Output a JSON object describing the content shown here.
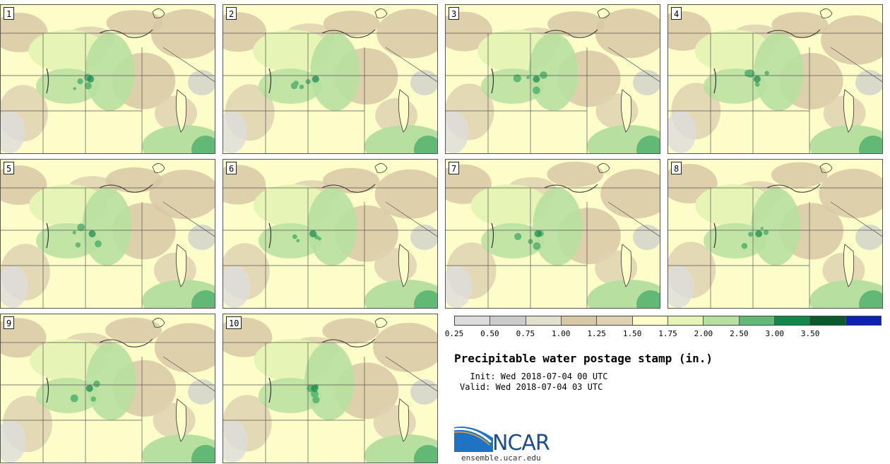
{
  "panels": [
    {
      "label": "1"
    },
    {
      "label": "2"
    },
    {
      "label": "3"
    },
    {
      "label": "4"
    },
    {
      "label": "5"
    },
    {
      "label": "6"
    },
    {
      "label": "7"
    },
    {
      "label": "8"
    },
    {
      "label": "9"
    },
    {
      "label": "10"
    }
  ],
  "colorbar": {
    "colors": [
      "#dcdcdc",
      "#cbcbcb",
      "#e3dfcf",
      "#d8c8a6",
      "#dfd2b2",
      "#fdfdc9",
      "#e6f4b5",
      "#b7e0a0",
      "#62b875",
      "#13874a",
      "#0a5a2e",
      "#0b22b5"
    ],
    "ticks": [
      "0.25",
      "0.50",
      "0.75",
      "1.00",
      "1.25",
      "1.50",
      "1.75",
      "2.00",
      "2.50",
      "3.00",
      "3.50"
    ]
  },
  "title": "Precipitable water postage stamp (in.)",
  "init": "  Init: Wed 2018-07-04 00 UTC",
  "valid": "Valid: Wed 2018-07-04 03 UTC",
  "logo": {
    "text": "NCAR",
    "site": "ensemble.ucar.edu",
    "color": "#1c4e8f"
  }
}
